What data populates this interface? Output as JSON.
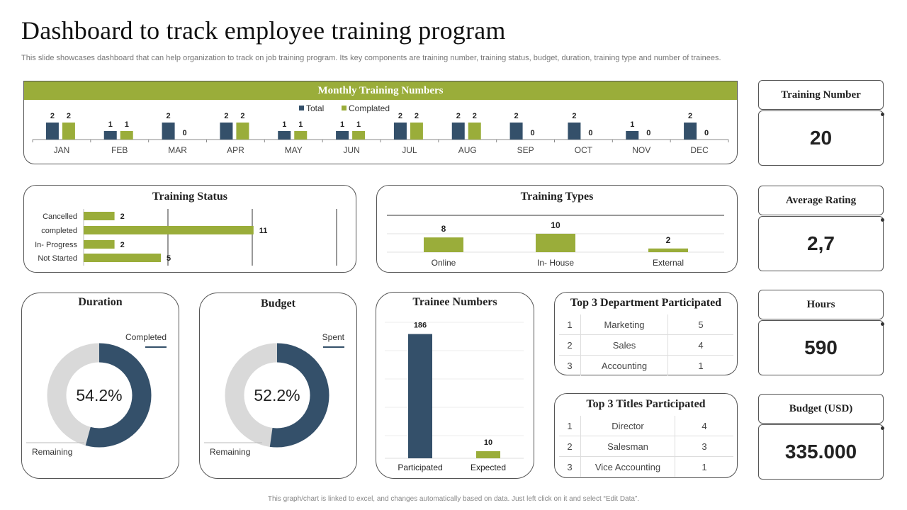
{
  "page": {
    "title": "Dashboard to track employee training program",
    "subtitle": "This slide showcases dashboard that can help organization to track on job training program. Its key components are training number, training status, budget, duration, training type and number of trainees.",
    "footer": "This graph/chart is linked to excel, and changes automatically based on data. Just left click on it and select “Edit Data”."
  },
  "colors": {
    "navy": "#34506a",
    "green": "#9aad3a",
    "grey": "#d9d9d9"
  },
  "kpis": [
    {
      "label": "Training Number",
      "value": "20"
    },
    {
      "label": "Average Rating",
      "value": "2,7"
    },
    {
      "label": "Hours",
      "value": "590"
    },
    {
      "label": "Budget (USD)",
      "value": "335.000"
    }
  ],
  "panels": {
    "monthly": "Monthly Training Numbers",
    "status": "Training Status",
    "types": "Training Types",
    "duration": "Duration",
    "budget": "Budget",
    "trainees": "Trainee Numbers",
    "top_departments": "Top 3 Department Participated",
    "top_titles": "Top 3 Titles Participated"
  },
  "top_departments": [
    {
      "rank": "1",
      "name": "Marketing",
      "count": "5"
    },
    {
      "rank": "2",
      "name": "Sales",
      "count": "4"
    },
    {
      "rank": "3",
      "name": "Accounting",
      "count": "1"
    }
  ],
  "top_titles": [
    {
      "rank": "1",
      "name": "Director",
      "count": "4"
    },
    {
      "rank": "2",
      "name": "Salesman",
      "count": "3"
    },
    {
      "rank": "3",
      "name": "Vice Accounting",
      "count": "1"
    }
  ],
  "chart_data": [
    {
      "type": "bar",
      "title": "Monthly Training Numbers",
      "categories": [
        "JAN",
        "FEB",
        "MAR",
        "APR",
        "MAY",
        "JUN",
        "JUL",
        "AUG",
        "SEP",
        "OCT",
        "NOV",
        "DEC"
      ],
      "series": [
        {
          "name": "Total",
          "values": [
            2,
            1,
            2,
            2,
            1,
            1,
            2,
            2,
            2,
            2,
            1,
            2
          ]
        },
        {
          "name": "Complated",
          "values": [
            2,
            1,
            0,
            2,
            1,
            1,
            2,
            2,
            0,
            0,
            0,
            0
          ]
        }
      ],
      "legend": "top-center"
    },
    {
      "type": "bar",
      "orientation": "horizontal",
      "title": "Training Status",
      "categories": [
        "Cancelled",
        "completed",
        "In- Progress",
        "Not Started"
      ],
      "values": [
        2,
        11,
        2,
        5
      ]
    },
    {
      "type": "bar",
      "title": "Training Types",
      "categories": [
        "Online",
        "In- House",
        "External"
      ],
      "values": [
        8,
        10,
        2
      ]
    },
    {
      "type": "pie",
      "title": "Duration",
      "center_label": "54.2%",
      "slices": [
        {
          "name": "Completed",
          "value": 54.2
        },
        {
          "name": "Remaining",
          "value": 45.8
        }
      ]
    },
    {
      "type": "pie",
      "title": "Budget",
      "center_label": "52.2%",
      "slices": [
        {
          "name": "Spent",
          "value": 52.2
        },
        {
          "name": "Remaining",
          "value": 47.8
        }
      ]
    },
    {
      "type": "bar",
      "title": "Trainee Numbers",
      "categories": [
        "Participated",
        "Expected"
      ],
      "values": [
        186,
        10
      ]
    }
  ]
}
